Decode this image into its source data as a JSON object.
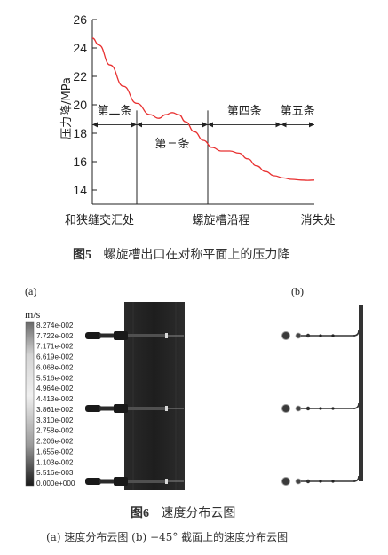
{
  "figure5": {
    "caption_num": "图5",
    "caption_text": "螺旋槽出口在对称平面上的压力降",
    "chart_data": {
      "type": "line",
      "ylabel": "压力降/MPa",
      "ylim": [
        13,
        26
      ],
      "yticks": [
        14,
        16,
        18,
        20,
        22,
        24,
        26
      ],
      "x_labels": [
        "和狭缝交汇处",
        "螺旋槽沿程",
        "消失处"
      ],
      "segments": [
        "第二条",
        "第三条",
        "第四条",
        "第五条"
      ],
      "series": [
        {
          "color": "#e83030",
          "x": [
            0,
            0.03,
            0.08,
            0.14,
            0.2,
            0.26,
            0.3,
            0.33,
            0.36,
            0.39,
            0.42,
            0.46,
            0.5,
            0.54,
            0.58,
            0.62,
            0.66,
            0.7,
            0.74,
            0.78,
            0.82,
            0.86,
            0.9,
            0.94,
            0.97,
            1.0
          ],
          "y": [
            24.7,
            24.2,
            22.8,
            21.3,
            20.1,
            19.3,
            19.05,
            19.3,
            19.45,
            19.3,
            18.8,
            18.1,
            17.5,
            17.0,
            16.75,
            16.75,
            16.6,
            16.2,
            15.7,
            15.3,
            15.0,
            14.85,
            14.75,
            14.7,
            14.68,
            14.7
          ]
        }
      ],
      "boundaries": [
        0.2,
        0.52,
        0.85
      ]
    }
  },
  "figure6": {
    "caption_num": "图6",
    "caption_text": "速度分布云图",
    "sub_caption": "(a) 速度分布云图   (b) −45° 截面上的速度分布云图",
    "label_a": "(a)",
    "label_b": "(b)",
    "colorbar": {
      "unit": "m/s",
      "ticks": [
        "8.274e-002",
        "7.722e-002",
        "7.171e-002",
        "6.619e-002",
        "6.068e-002",
        "5.516e-002",
        "4.964e-002",
        "4.413e-002",
        "3.861e-002",
        "3.310e-002",
        "2.758e-002",
        "2.206e-002",
        "1.655e-002",
        "1.103e-002",
        "5.516e-003",
        "0.000e+000"
      ]
    }
  }
}
